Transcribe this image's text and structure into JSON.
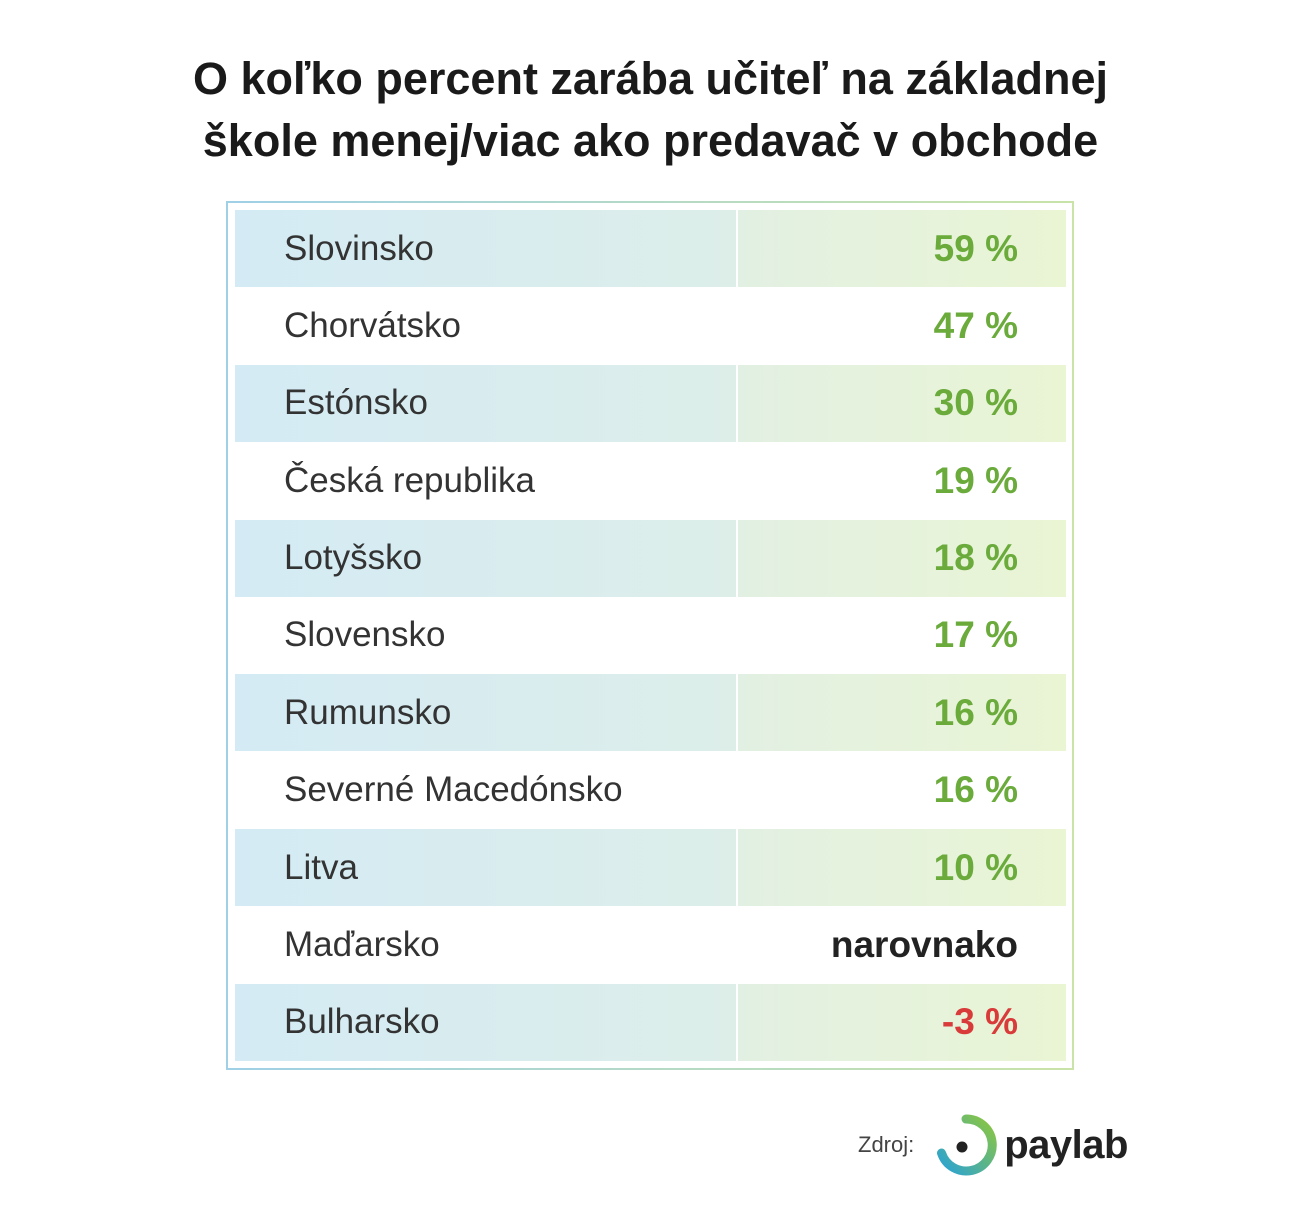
{
  "title_lines": [
    "O koľko percent zarába učiteľ na základnej",
    "škole menej/viac ako predavač v obchode"
  ],
  "chart_data": {
    "type": "table",
    "title": "O koľko percent zarába učiteľ na základnej škole menej/viac ako predavač v obchode",
    "columns": [
      "country",
      "difference"
    ],
    "rows": [
      {
        "country": "Slovinsko",
        "label": "59 %",
        "value": 59,
        "kind": "positive"
      },
      {
        "country": "Chorvátsko",
        "label": "47 %",
        "value": 47,
        "kind": "positive"
      },
      {
        "country": "Estónsko",
        "label": "30 %",
        "value": 30,
        "kind": "positive"
      },
      {
        "country": "Česká republika",
        "label": "19 %",
        "value": 19,
        "kind": "positive"
      },
      {
        "country": "Lotyšsko",
        "label": "18 %",
        "value": 18,
        "kind": "positive"
      },
      {
        "country": "Slovensko",
        "label": "17 %",
        "value": 17,
        "kind": "positive"
      },
      {
        "country": "Rumunsko",
        "label": "16 %",
        "value": 16,
        "kind": "positive"
      },
      {
        "country": "Severné Macedónsko",
        "label": "16 %",
        "value": 16,
        "kind": "positive"
      },
      {
        "country": "Litva",
        "label": "10 %",
        "value": 10,
        "kind": "positive"
      },
      {
        "country": "Maďarsko",
        "label": "narovnako",
        "value": 0,
        "kind": "equal"
      },
      {
        "country": "Bulharsko",
        "label": "-3 %",
        "value": -3,
        "kind": "negative"
      }
    ]
  },
  "colors": {
    "positive": "#6aab3c",
    "equal": "#222222",
    "negative": "#d93a3a"
  },
  "footer": {
    "source_label": "Zdroj:",
    "logo_text": "paylab",
    "logo_icon": "paylab-ring-logo-icon"
  }
}
